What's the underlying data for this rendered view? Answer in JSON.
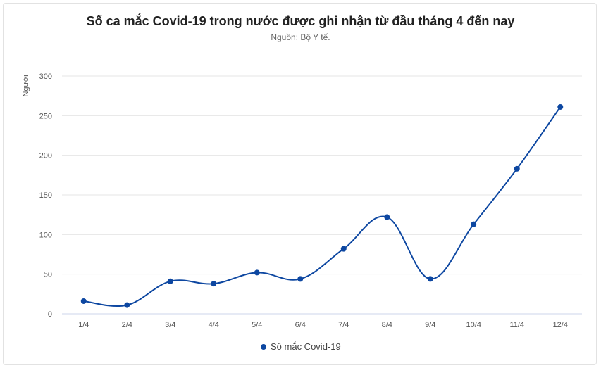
{
  "title": "Số ca mắc Covid-19 trong nước được ghi nhận từ đầu tháng 4 đến nay",
  "subtitle": "Nguồn: Bộ Y tế.",
  "legend": {
    "label": "Số mắc Covid-19",
    "color": "#0d47a1"
  },
  "chart_data": {
    "type": "line",
    "title": "Số ca mắc Covid-19 trong nước được ghi nhận từ đầu tháng 4 đến nay",
    "subtitle": "Nguồn: Bộ Y tế.",
    "xlabel": "",
    "ylabel": "Người",
    "categories": [
      "1/4",
      "2/4",
      "3/4",
      "4/4",
      "5/4",
      "6/4",
      "7/4",
      "8/4",
      "9/4",
      "10/4",
      "11/4",
      "12/4"
    ],
    "series": [
      {
        "name": "Số mắc Covid-19",
        "color": "#0d47a1",
        "values": [
          16,
          11,
          41,
          38,
          52,
          44,
          82,
          122,
          44,
          113,
          183,
          261
        ]
      }
    ],
    "yticks": [
      0,
      50,
      100,
      150,
      200,
      250,
      300
    ],
    "ylim": [
      0,
      300
    ],
    "grid": true,
    "legend_position": "bottom",
    "smooth": true
  }
}
